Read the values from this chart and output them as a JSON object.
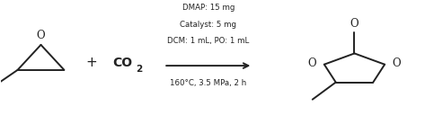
{
  "figsize": [
    4.73,
    1.38
  ],
  "dpi": 100,
  "bg_color": "#ffffff",
  "reaction_conditions_lines": [
    "DMAP: 15 mg",
    "Catalyst: 5 mg",
    "DCM: 1 mL, PO: 1 mL",
    "160°C, 3.5 MPa, 2 h"
  ],
  "text_color": "#222222",
  "line_color": "#222222",
  "conditions_fontsize": 6.2,
  "label_fontsize": 8.5,
  "plus_fontsize": 11,
  "co2_fontsize": 10,
  "lw": 1.4
}
